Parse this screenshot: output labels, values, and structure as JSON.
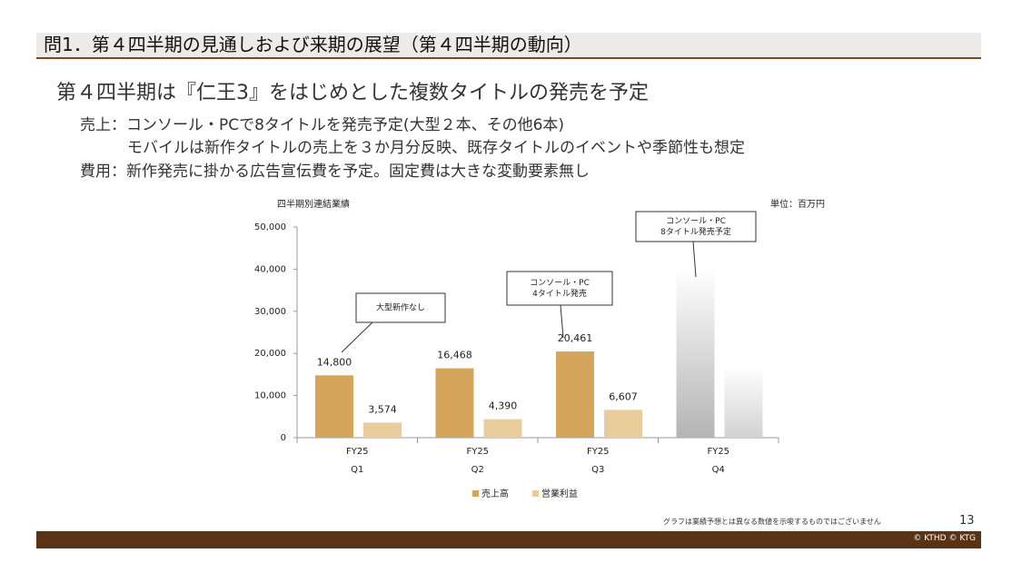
{
  "slide": {
    "header": "問1．第４四半期の見通しおよび来期の展望（第４四半期の動向）",
    "headline": "第４四半期は『仁王3』をはじめとした複数タイトルの発売を予定",
    "bullets": [
      "売上：コンソール・PCで8タイトルを発売予定(大型２本、その他6本)",
      "モバイルは新作タイトルの売上を３か月分反映、既存タイトルのイベントや季節性も想定",
      "費用：新作発売に掛かる広告宣伝費を予定。固定費は大きな変動要素無し"
    ],
    "footnote": "グラフは業績予想とは異なる数値を示唆するものではございません",
    "page_number": "13",
    "copyright": "© KTHD © KTG"
  },
  "chart_data": {
    "type": "bar",
    "title": "四半期別連結業績",
    "unit": "単位：百万円",
    "categories": [
      [
        "FY25",
        "Q1"
      ],
      [
        "FY25",
        "Q2"
      ],
      [
        "FY25",
        "Q3"
      ],
      [
        "FY25",
        "Q4"
      ]
    ],
    "projected": [
      false,
      false,
      false,
      true
    ],
    "series": [
      {
        "name": "売上高",
        "color": "#d4a55a",
        "projected_color": "#b4b4b4",
        "values": [
          14800,
          16468,
          20461,
          40000
        ],
        "value_labels": [
          "14,800",
          "16,468",
          "20,461",
          null
        ]
      },
      {
        "name": "営業利益",
        "color": "#e8cc9c",
        "projected_color": "#d2d2d2",
        "values": [
          3574,
          4390,
          6607,
          17000
        ],
        "value_labels": [
          "3,574",
          "4,390",
          "6,607",
          null
        ]
      }
    ],
    "ylim": [
      0,
      50000
    ],
    "yticks": [
      0,
      {
        "value": 10000,
        "label": "10,000"
      },
      {
        "value": 20000,
        "label": "20,000"
      },
      {
        "value": 30000,
        "label": "30,000"
      },
      {
        "value": 40000,
        "label": "40,000"
      },
      {
        "value": 50000,
        "label": "50,000"
      }
    ],
    "annotations": [
      {
        "lines": [
          "大型新作なし"
        ]
      },
      {
        "lines": [
          "コンソール・PC",
          "4タイトル発売"
        ]
      },
      {
        "lines": [
          "コンソール・PC",
          "8タイトル発売予定"
        ]
      }
    ]
  }
}
